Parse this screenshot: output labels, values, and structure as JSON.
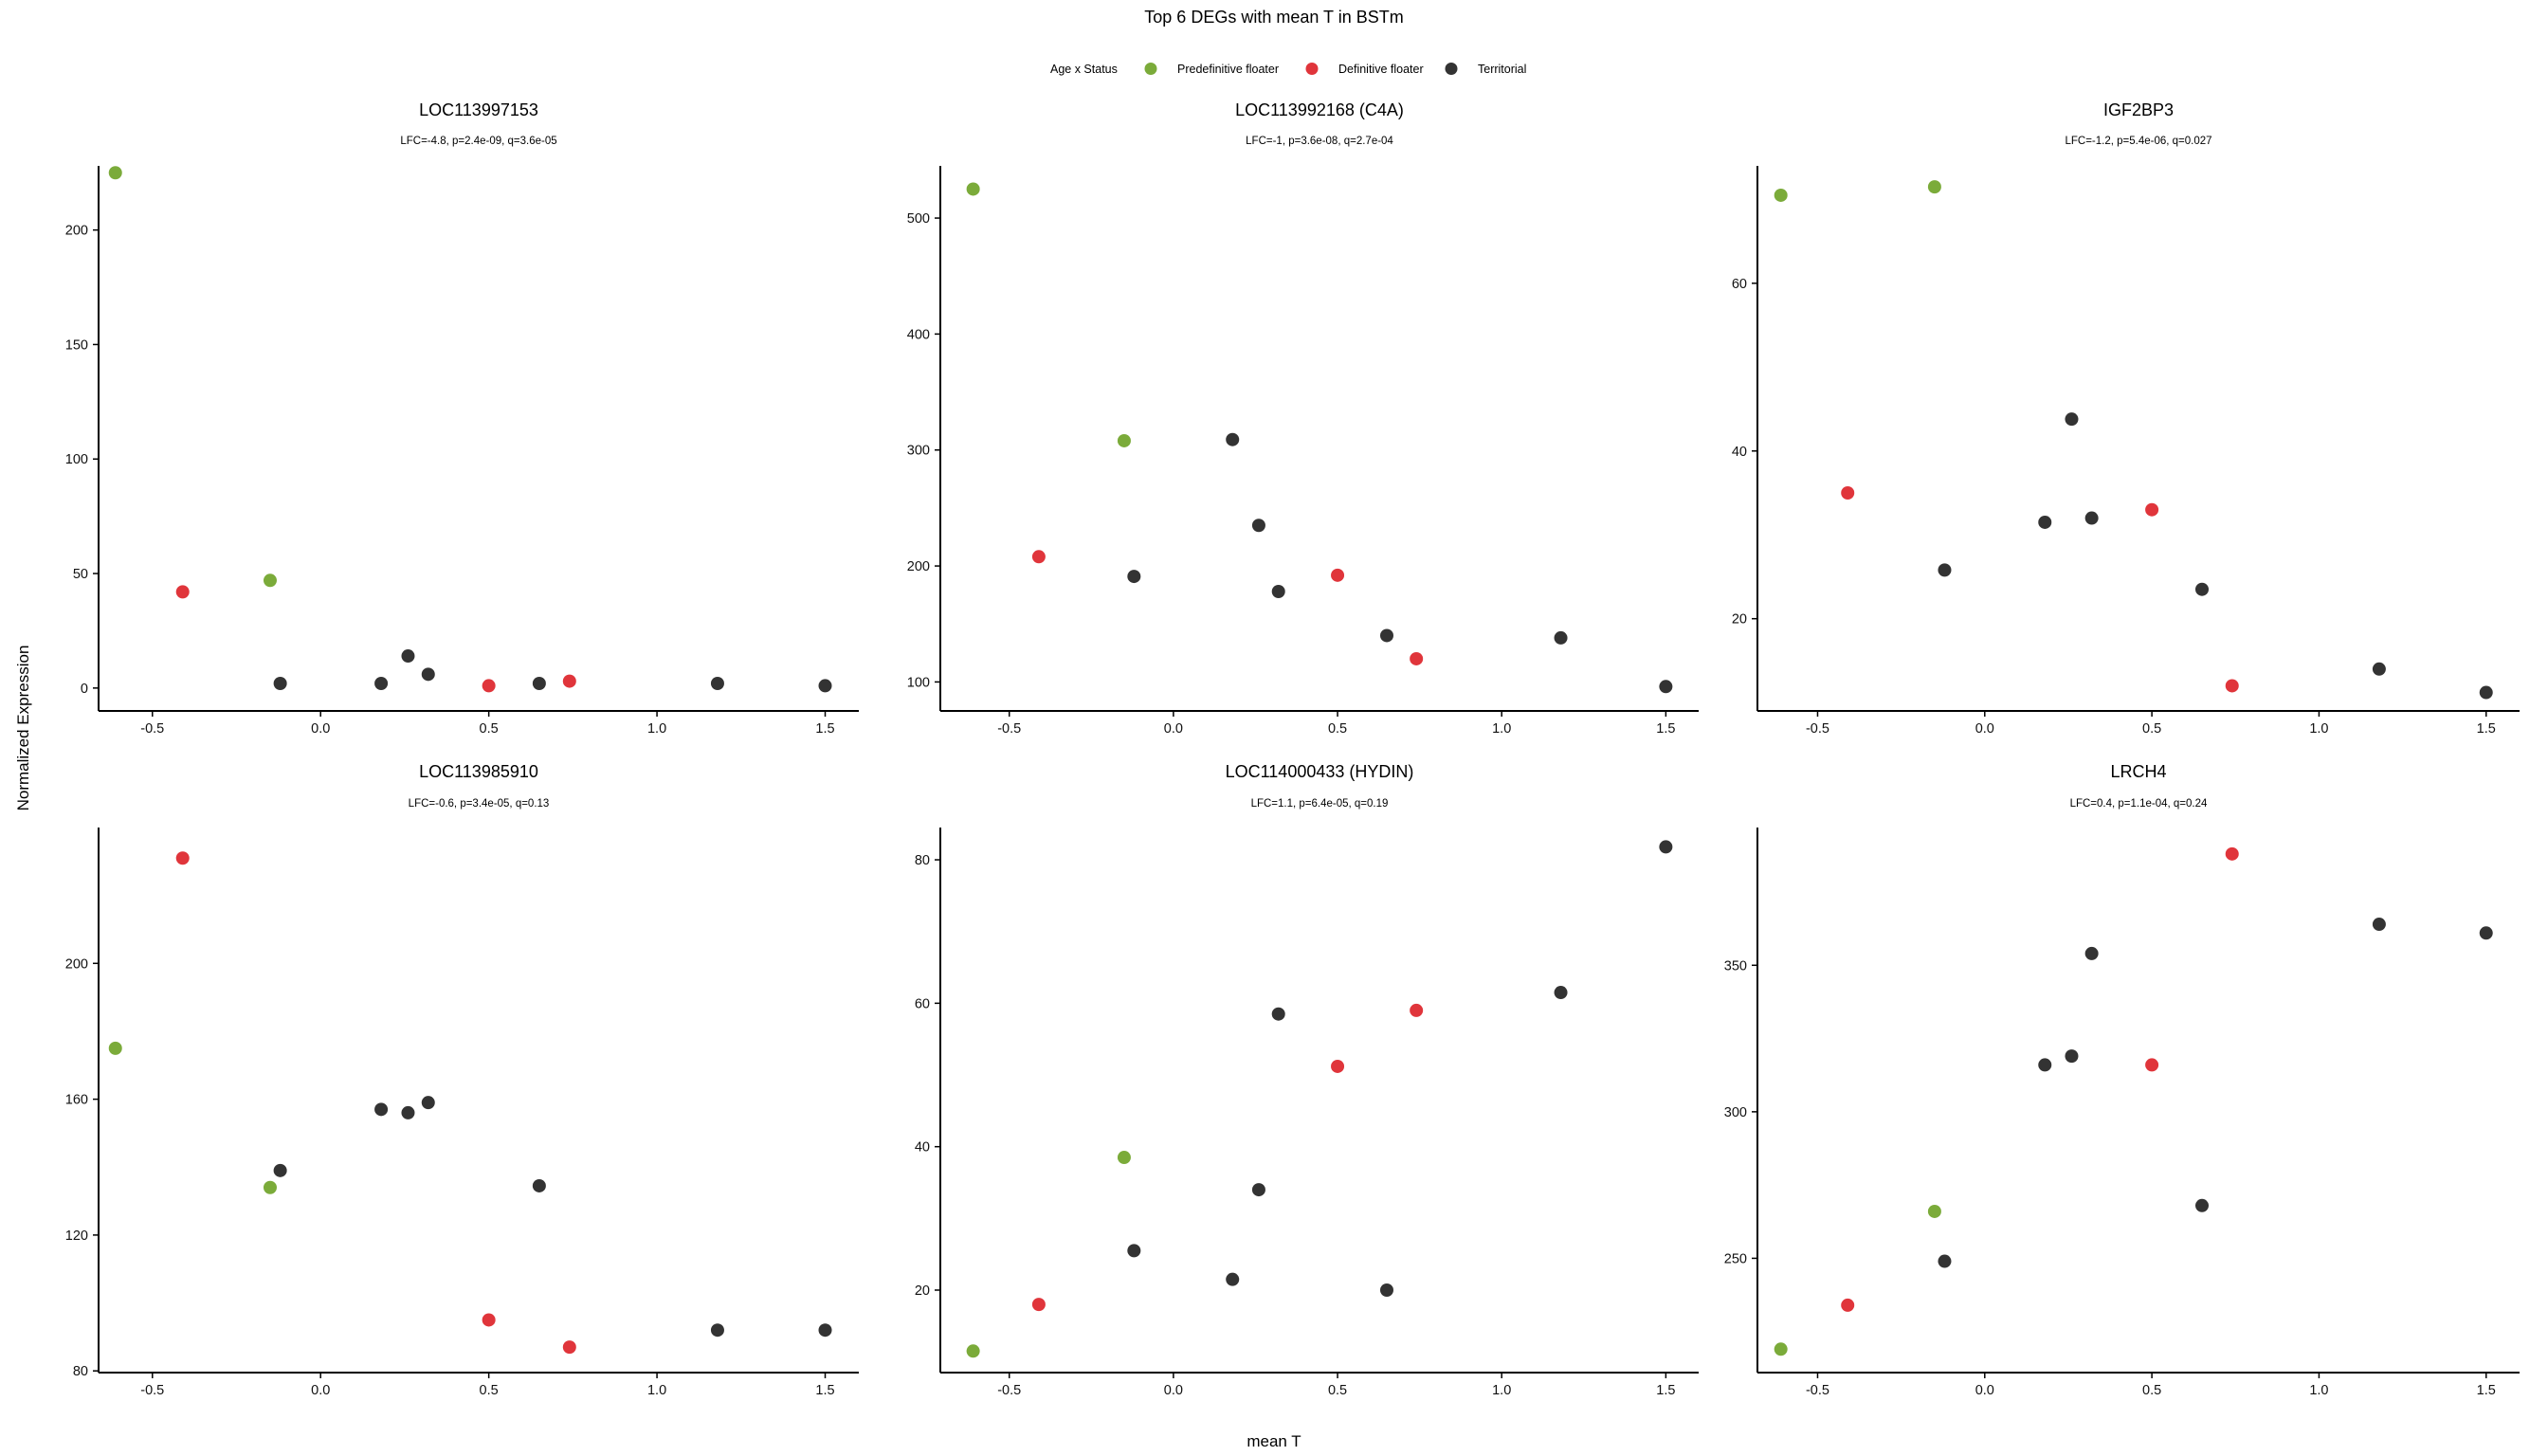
{
  "figure": {
    "title": "Top 6 DEGs with mean T in BSTm",
    "x_axis_label": "mean T",
    "y_axis_label": "Normalized Expression",
    "legend": {
      "title": "Age x Status",
      "items": [
        {
          "label": "Predefinitive floater",
          "color": "#7bab3a"
        },
        {
          "label": "Definitive floater",
          "color": "#e0353b"
        },
        {
          "label": "Territorial",
          "color": "#333333"
        }
      ]
    }
  },
  "chart_data": [
    {
      "type": "scatter",
      "title": "LOC113997153",
      "subtitle": "LFC=-4.8, p=2.4e-09, q=3.6e-05",
      "xlim": [
        -0.66,
        1.6
      ],
      "ylim": [
        -10,
        228
      ],
      "xticks": [
        "-0.5",
        "0.0",
        "0.5",
        "1.0",
        "1.5"
      ],
      "yticks": [
        "0",
        "50",
        "100",
        "150",
        "200"
      ],
      "series": [
        {
          "name": "Predefinitive floater",
          "points": [
            [
              -0.61,
              225
            ],
            [
              -0.15,
              47
            ]
          ]
        },
        {
          "name": "Definitive floater",
          "points": [
            [
              -0.41,
              42
            ],
            [
              0.5,
              1
            ],
            [
              0.74,
              3
            ]
          ]
        },
        {
          "name": "Territorial",
          "points": [
            [
              -0.12,
              2
            ],
            [
              0.18,
              2
            ],
            [
              0.26,
              14
            ],
            [
              0.32,
              6
            ],
            [
              0.65,
              2
            ],
            [
              1.18,
              2
            ],
            [
              1.5,
              1
            ]
          ]
        }
      ]
    },
    {
      "type": "scatter",
      "title": "LOC113992168 (C4A)",
      "subtitle": "LFC=-1, p=3.6e-08, q=2.7e-04",
      "xlim": [
        -0.71,
        1.6
      ],
      "ylim": [
        75,
        545
      ],
      "xticks": [
        "-0.5",
        "0.0",
        "0.5",
        "1.0",
        "1.5"
      ],
      "yticks": [
        "100",
        "200",
        "300",
        "400",
        "500"
      ],
      "series": [
        {
          "name": "Predefinitive floater",
          "points": [
            [
              -0.61,
              525
            ],
            [
              -0.15,
              308
            ]
          ]
        },
        {
          "name": "Definitive floater",
          "points": [
            [
              -0.41,
              208
            ],
            [
              0.5,
              192
            ],
            [
              0.74,
              120
            ]
          ]
        },
        {
          "name": "Territorial",
          "points": [
            [
              -0.12,
              191
            ],
            [
              0.18,
              309
            ],
            [
              0.26,
              235
            ],
            [
              0.32,
              178
            ],
            [
              0.65,
              140
            ],
            [
              1.18,
              138
            ],
            [
              1.5,
              96
            ]
          ]
        }
      ]
    },
    {
      "type": "scatter",
      "title": "IGF2BP3",
      "subtitle": "LFC=-1.2, p=5.4e-06, q=0.027",
      "xlim": [
        -0.68,
        1.6
      ],
      "ylim": [
        9,
        74
      ],
      "xticks": [
        "-0.5",
        "0.0",
        "0.5",
        "1.0",
        "1.5"
      ],
      "yticks": [
        "20",
        "40",
        "60"
      ],
      "series": [
        {
          "name": "Predefinitive floater",
          "points": [
            [
              -0.61,
              70.5
            ],
            [
              -0.15,
              71.5
            ]
          ]
        },
        {
          "name": "Definitive floater",
          "points": [
            [
              -0.41,
              35
            ],
            [
              0.5,
              33
            ],
            [
              0.74,
              12
            ]
          ]
        },
        {
          "name": "Territorial",
          "points": [
            [
              -0.12,
              25.8
            ],
            [
              0.18,
              31.5
            ],
            [
              0.26,
              43.8
            ],
            [
              0.32,
              32
            ],
            [
              0.65,
              23.5
            ],
            [
              1.18,
              14
            ],
            [
              1.5,
              11.2
            ]
          ]
        }
      ]
    },
    {
      "type": "scatter",
      "title": "LOC113985910",
      "subtitle": "LFC=-0.6, p=3.4e-05, q=0.13",
      "xlim": [
        -0.66,
        1.6
      ],
      "ylim": [
        79.5,
        240
      ],
      "xticks": [
        "-0.5",
        "0.0",
        "0.5",
        "1.0",
        "1.5"
      ],
      "yticks": [
        "80",
        "120",
        "160",
        "200"
      ],
      "series": [
        {
          "name": "Predefinitive floater",
          "points": [
            [
              -0.61,
              175
            ],
            [
              -0.15,
              134
            ]
          ]
        },
        {
          "name": "Definitive floater",
          "points": [
            [
              -0.41,
              231
            ],
            [
              0.5,
              95
            ],
            [
              0.74,
              87
            ]
          ]
        },
        {
          "name": "Territorial",
          "points": [
            [
              -0.12,
              139
            ],
            [
              0.18,
              157
            ],
            [
              0.26,
              156
            ],
            [
              0.32,
              159
            ],
            [
              0.65,
              134.5
            ],
            [
              1.18,
              92
            ],
            [
              1.5,
              92
            ]
          ]
        }
      ]
    },
    {
      "type": "scatter",
      "title": "LOC114000433 (HYDIN)",
      "subtitle": "LFC=1.1, p=6.4e-05, q=0.19",
      "xlim": [
        -0.71,
        1.6
      ],
      "ylim": [
        8.5,
        84.5
      ],
      "xticks": [
        "-0.5",
        "0.0",
        "0.5",
        "1.0",
        "1.5"
      ],
      "yticks": [
        "20",
        "40",
        "60",
        "80"
      ],
      "series": [
        {
          "name": "Predefinitive floater",
          "points": [
            [
              -0.61,
              11.5
            ],
            [
              -0.15,
              38.5
            ]
          ]
        },
        {
          "name": "Definitive floater",
          "points": [
            [
              -0.41,
              18
            ],
            [
              0.5,
              51.2
            ],
            [
              0.74,
              59
            ]
          ]
        },
        {
          "name": "Territorial",
          "points": [
            [
              -0.12,
              25.5
            ],
            [
              0.18,
              21.5
            ],
            [
              0.26,
              34
            ],
            [
              0.32,
              58.5
            ],
            [
              0.65,
              20
            ],
            [
              1.18,
              61.5
            ],
            [
              1.5,
              81.8
            ]
          ]
        }
      ]
    },
    {
      "type": "scatter",
      "title": "LRCH4",
      "subtitle": "LFC=0.4, p=1.1e-04, q=0.24",
      "xlim": [
        -0.68,
        1.6
      ],
      "ylim": [
        211,
        397
      ],
      "xticks": [
        "-0.5",
        "0.0",
        "0.5",
        "1.0",
        "1.5"
      ],
      "yticks": [
        "250",
        "300",
        "350"
      ],
      "series": [
        {
          "name": "Predefinitive floater",
          "points": [
            [
              -0.61,
              219
            ],
            [
              -0.15,
              266
            ]
          ]
        },
        {
          "name": "Definitive floater",
          "points": [
            [
              -0.41,
              234
            ],
            [
              0.5,
              316
            ],
            [
              0.74,
              388
            ]
          ]
        },
        {
          "name": "Territorial",
          "points": [
            [
              -0.12,
              249
            ],
            [
              0.18,
              316
            ],
            [
              0.26,
              319
            ],
            [
              0.32,
              354
            ],
            [
              0.65,
              268
            ],
            [
              1.18,
              364
            ],
            [
              1.5,
              361
            ]
          ]
        }
      ]
    }
  ]
}
